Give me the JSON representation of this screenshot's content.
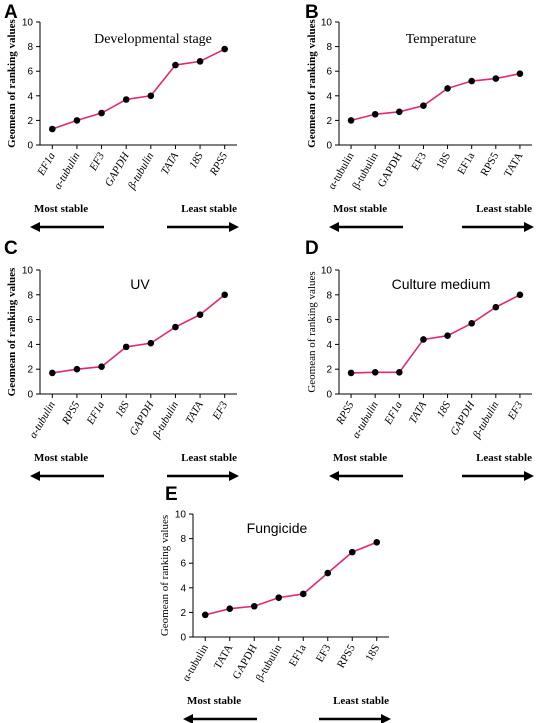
{
  "colors": {
    "line": "#e0287a",
    "marker": "#000000"
  },
  "chart_data": [
    {
      "panel": "A",
      "type": "line",
      "title": "Developmental stage",
      "ylabel": "Geomean of ranking values",
      "ylim": [
        0,
        10
      ],
      "yticks": [
        0,
        2,
        4,
        6,
        8,
        10
      ],
      "categories": [
        "EF1a",
        "α-tubulin",
        "EF3",
        "GAPDH",
        "β-tubulin",
        "TATA",
        "18S",
        "RPS5"
      ],
      "values": [
        1.3,
        2.0,
        2.6,
        3.7,
        4.0,
        6.5,
        6.8,
        7.8
      ],
      "most_stable_label": "Most stable",
      "least_stable_label": "Least stable"
    },
    {
      "panel": "B",
      "type": "line",
      "title": "Temperature",
      "ylabel": "Geomean of ranking values",
      "ylim": [
        0,
        10
      ],
      "yticks": [
        0,
        2,
        4,
        6,
        8,
        10
      ],
      "categories": [
        "α-tubulin",
        "β-tubulin",
        "GAPDH",
        "EF3",
        "18S",
        "EF1a",
        "RPS5",
        "TATA"
      ],
      "values": [
        2.0,
        2.5,
        2.7,
        3.2,
        4.6,
        5.2,
        5.4,
        5.8
      ],
      "most_stable_label": "Most stable",
      "least_stable_label": "Least stable"
    },
    {
      "panel": "C",
      "type": "line",
      "title": "UV",
      "ylabel": "Geomean of ranking values",
      "ylim": [
        0,
        10
      ],
      "yticks": [
        0,
        2,
        4,
        6,
        8,
        10
      ],
      "categories": [
        "α-tubulin",
        "RPS5",
        "EF1a",
        "18S",
        "GAPDH",
        "β-tubulin",
        "TATA",
        "EF3"
      ],
      "values": [
        1.7,
        2.0,
        2.2,
        3.8,
        4.1,
        5.4,
        6.4,
        8.0
      ],
      "most_stable_label": "Most stable",
      "least_stable_label": "Least stable"
    },
    {
      "panel": "D",
      "type": "line",
      "title": "Culture medium",
      "ylabel": "Geomean of ranking values",
      "ylim": [
        0,
        10
      ],
      "yticks": [
        0,
        2,
        4,
        6,
        8,
        10
      ],
      "categories": [
        "RPS5",
        "α-tubulin",
        "EF1a",
        "TATA",
        "18S",
        "GAPDH",
        "β-tubulin",
        "EF3"
      ],
      "values": [
        1.7,
        1.75,
        1.75,
        4.4,
        4.7,
        5.7,
        7.0,
        8.0
      ],
      "most_stable_label": "Most stable",
      "least_stable_label": "Least stable"
    },
    {
      "panel": "E",
      "type": "line",
      "title": "Fungicide",
      "ylabel": "Geomean of ranking values",
      "ylim": [
        0,
        10
      ],
      "yticks": [
        0,
        2,
        4,
        6,
        8,
        10
      ],
      "categories": [
        "α-tubulin",
        "TATA",
        "GAPDH",
        "β-tubulin",
        "EF1a",
        "EF3",
        "RPS5",
        "18S"
      ],
      "values": [
        1.8,
        2.3,
        2.5,
        3.2,
        3.5,
        5.2,
        6.9,
        7.7
      ],
      "most_stable_label": "Most stable",
      "least_stable_label": "Least stable"
    }
  ]
}
